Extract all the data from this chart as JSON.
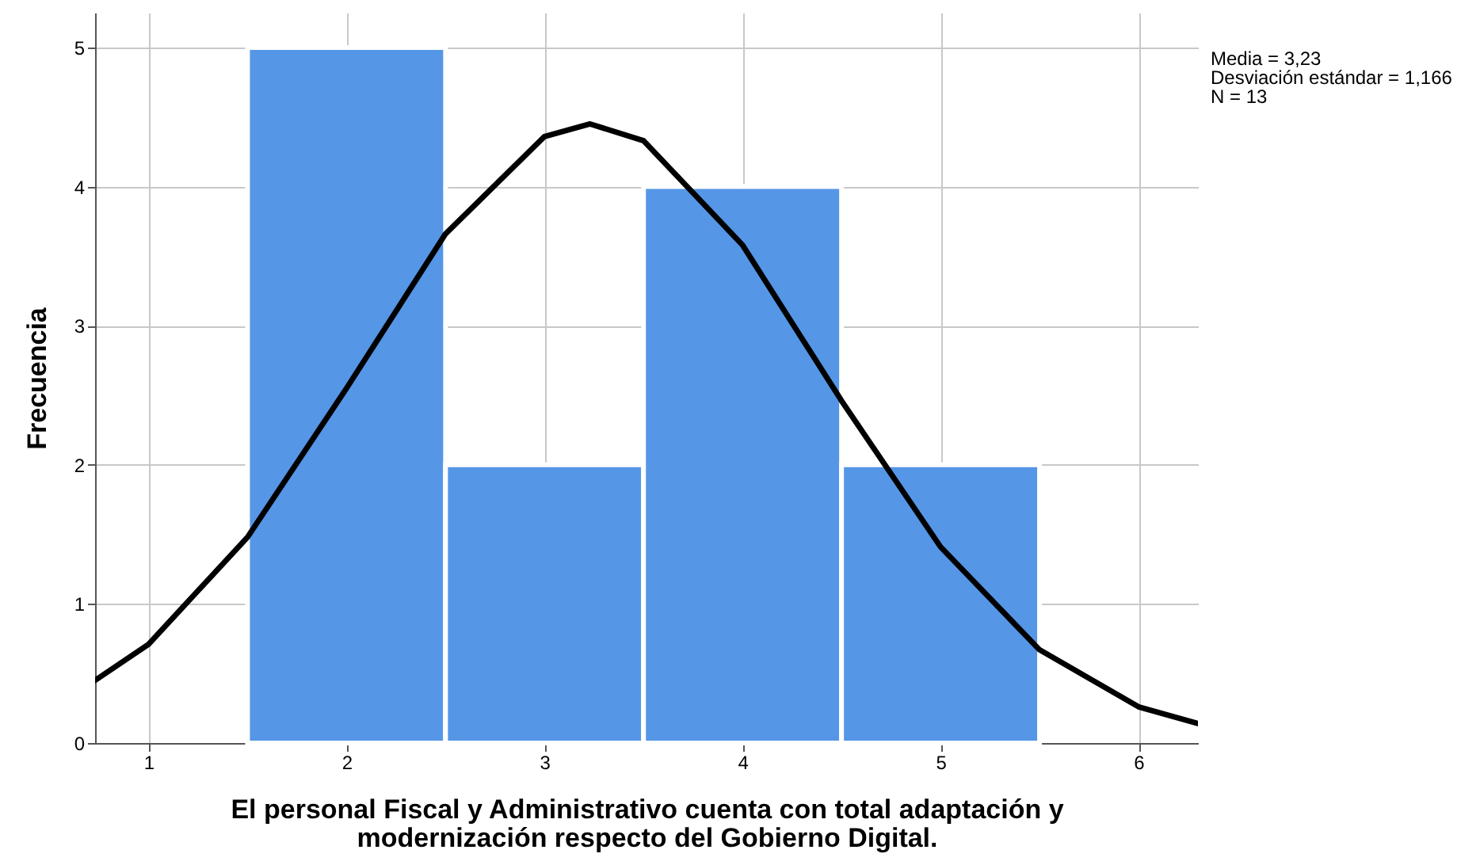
{
  "chart_data": {
    "type": "histogram",
    "xlabel": "El personal Fiscal y Administrativo cuenta con total adaptación y\nmodernización respecto del Gobierno Digital.",
    "ylabel": "Frecuencia",
    "annotations": [
      "Media = 3,23",
      "Desviación estándar = 1,166",
      "N = 13"
    ],
    "bins": [
      1.5,
      2.5,
      3.5,
      4.5,
      5.5
    ],
    "values": [
      5,
      2,
      4,
      2
    ],
    "color": "#5596e6",
    "series": [
      {
        "type": "line",
        "color": "#000000",
        "x": [
          0.73,
          1,
          1.5,
          2,
          2.5,
          3,
          3.23,
          3.5,
          4,
          4.5,
          5,
          5.5,
          6,
          6.3
        ],
        "values": [
          0.45,
          0.71,
          1.48,
          2.55,
          3.66,
          4.36,
          4.45,
          4.33,
          3.58,
          2.46,
          1.41,
          0.67,
          0.26,
          0.14
        ]
      }
    ],
    "xlim": [
      0.73,
      6.3
    ],
    "xticks": [
      1,
      2,
      3,
      4,
      5,
      6
    ],
    "ylim": [
      0,
      5.25
    ],
    "yticks": [
      0,
      1,
      2,
      3,
      4,
      5
    ],
    "grid": true
  }
}
